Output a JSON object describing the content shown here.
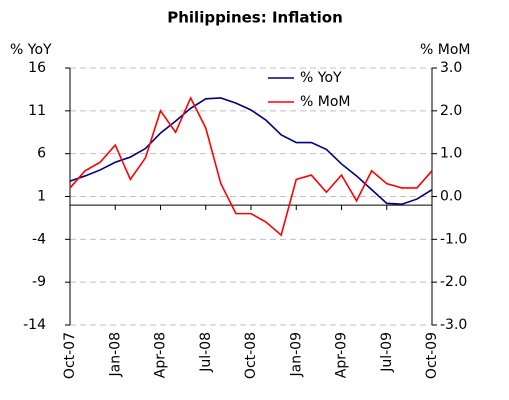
{
  "chart_data": {
    "type": "line",
    "title": "Philippines: Inflation",
    "ylabel": "% YoY",
    "y2label": "% MoM",
    "categories": [
      "Oct-07",
      null,
      null,
      "Jan-08",
      null,
      null,
      "Apr-08",
      null,
      null,
      "Jul-08",
      null,
      null,
      "Oct-08",
      null,
      null,
      "Jan-09",
      null,
      null,
      "Apr-09",
      null,
      null,
      "Jul-09",
      null,
      null,
      "Oct-09"
    ],
    "series": [
      {
        "name": "% YoY",
        "color": "#000080",
        "values": [
          2.8,
          3.4,
          4.1,
          5.0,
          5.6,
          6.6,
          8.4,
          9.8,
          11.3,
          12.4,
          12.5,
          11.9,
          11.1,
          9.9,
          8.2,
          7.3,
          7.3,
          6.5,
          4.8,
          3.4,
          1.8,
          0.2,
          0.1,
          0.7,
          1.8
        ]
      },
      {
        "name": "% MoM",
        "color": "#ff0000",
        "axis": "y2",
        "values": [
          0.2,
          0.6,
          0.8,
          1.2,
          0.4,
          0.9,
          2.0,
          1.5,
          2.3,
          1.6,
          0.3,
          -0.4,
          -0.4,
          -0.6,
          -0.9,
          0.4,
          0.5,
          0.1,
          0.5,
          -0.1,
          0.6,
          0.3,
          0.2,
          0.2,
          0.6
        ]
      }
    ],
    "ylim": [
      -14,
      16
    ],
    "yticks": [
      -14,
      -9,
      -4,
      1,
      6,
      11,
      16
    ],
    "y2lim": [
      -3,
      3
    ],
    "y2ticks": [
      {
        "value": -3,
        "label": "-3.0"
      },
      {
        "value": -2,
        "label": "-2.0"
      },
      {
        "value": -1,
        "label": "-1.0"
      },
      {
        "value": 0,
        "label": "0.0"
      },
      {
        "value": 1,
        "label": "1.0"
      },
      {
        "value": 2,
        "label": "2.0"
      },
      {
        "value": 3,
        "label": "3.0"
      }
    ],
    "grid": true,
    "legend": "upper right"
  }
}
